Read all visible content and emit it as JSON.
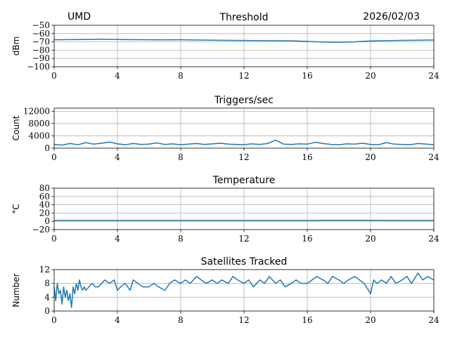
{
  "header": {
    "site": "UMD",
    "date": "2026/02/03"
  },
  "series_color": "#1f77b4",
  "chart_data": [
    {
      "type": "line",
      "title": "Threshold",
      "ylabel": "dBm",
      "xlabel": "",
      "xlim": [
        0,
        24
      ],
      "ylim": [
        -100,
        -50
      ],
      "x_ticks": [
        "0",
        "4",
        "8",
        "12",
        "16",
        "20",
        "24"
      ],
      "y_ticks": [
        "−50",
        "−60",
        "−70",
        "−80",
        "−90",
        "−100"
      ],
      "grid": true,
      "x": [
        0,
        1,
        2,
        3,
        4,
        5,
        6,
        7,
        8,
        9,
        10,
        11,
        12,
        13,
        14,
        15,
        16,
        17,
        18,
        19,
        20,
        21,
        22,
        23,
        24
      ],
      "values": [
        -67.5,
        -67.3,
        -67.2,
        -67.0,
        -67.2,
        -67.4,
        -67.5,
        -67.6,
        -67.5,
        -67.8,
        -68.0,
        -68.2,
        -68.3,
        -68.5,
        -68.6,
        -68.8,
        -69.5,
        -70.2,
        -70.5,
        -70.0,
        -69.0,
        -68.5,
        -68.2,
        -68.0,
        -67.8
      ]
    },
    {
      "type": "line",
      "title": "Triggers/sec",
      "ylabel": "Count",
      "xlabel": "",
      "xlim": [
        0,
        24
      ],
      "ylim": [
        0,
        13000
      ],
      "x_ticks": [
        "0",
        "4",
        "8",
        "12",
        "16",
        "20",
        "24"
      ],
      "y_ticks": [
        "0",
        "4000",
        "8000",
        "12000"
      ],
      "grid": true,
      "x": [
        0,
        0.5,
        1,
        1.5,
        2,
        2.5,
        3,
        3.5,
        4,
        4.5,
        5,
        5.5,
        6,
        6.5,
        7,
        7.5,
        8,
        8.5,
        9,
        9.5,
        10,
        10.5,
        11,
        11.5,
        12,
        12.5,
        13,
        13.5,
        14,
        14.5,
        15,
        15.5,
        16,
        16.5,
        17,
        17.5,
        18,
        18.5,
        19,
        19.5,
        20,
        20.5,
        21,
        21.5,
        22,
        22.5,
        23,
        23.5,
        24
      ],
      "values": [
        1200,
        1000,
        1500,
        1100,
        1800,
        1300,
        1600,
        2000,
        1400,
        1100,
        1500,
        1200,
        1300,
        1700,
        1200,
        1400,
        1100,
        1300,
        1500,
        1200,
        1400,
        1600,
        1300,
        1200,
        1100,
        1400,
        1200,
        1500,
        2600,
        1300,
        1200,
        1400,
        1300,
        1900,
        1500,
        1200,
        1100,
        1400,
        1300,
        1600,
        1200,
        1100,
        1800,
        1300,
        1200,
        1100,
        1500,
        1300,
        1100
      ]
    },
    {
      "type": "line",
      "title": "Temperature",
      "ylabel": "°C",
      "xlabel": "",
      "xlim": [
        0,
        24
      ],
      "ylim": [
        -20,
        80
      ],
      "x_ticks": [
        "0",
        "4",
        "8",
        "12",
        "16",
        "20",
        "24"
      ],
      "y_ticks": [
        "80",
        "60",
        "40",
        "20",
        "0",
        "−20"
      ],
      "grid": true,
      "x": [
        0,
        4,
        8,
        12,
        16,
        17,
        18,
        20,
        22,
        24
      ],
      "values": [
        2,
        2,
        2,
        2,
        2,
        2.5,
        2.5,
        2.5,
        2,
        2
      ]
    },
    {
      "type": "line",
      "title": "Satellites Tracked",
      "ylabel": "Number",
      "xlabel": "",
      "xlim": [
        0,
        24
      ],
      "ylim": [
        0,
        12
      ],
      "x_ticks": [
        "0",
        "4",
        "8",
        "12",
        "16",
        "20",
        "24"
      ],
      "y_ticks": [
        "0",
        "4",
        "8",
        "12"
      ],
      "grid": true,
      "x": [
        0,
        0.1,
        0.2,
        0.3,
        0.4,
        0.5,
        0.6,
        0.7,
        0.8,
        0.9,
        1.0,
        1.1,
        1.2,
        1.3,
        1.4,
        1.5,
        1.6,
        1.7,
        1.8,
        1.9,
        2.0,
        2.2,
        2.4,
        2.6,
        2.8,
        3.0,
        3.2,
        3.5,
        3.8,
        4.0,
        4.2,
        4.5,
        4.8,
        5.0,
        5.3,
        5.6,
        6.0,
        6.3,
        6.6,
        7.0,
        7.3,
        7.6,
        8.0,
        8.3,
        8.6,
        9.0,
        9.3,
        9.6,
        10.0,
        10.3,
        10.6,
        11.0,
        11.3,
        11.6,
        12.0,
        12.3,
        12.6,
        13.0,
        13.3,
        13.6,
        14.0,
        14.3,
        14.6,
        15.0,
        15.3,
        15.6,
        16.0,
        16.3,
        16.6,
        17.0,
        17.3,
        17.6,
        18.0,
        18.3,
        18.6,
        19.0,
        19.3,
        19.6,
        20.0,
        20.2,
        20.4,
        20.7,
        21.0,
        21.3,
        21.6,
        22.0,
        22.3,
        22.6,
        23.0,
        23.3,
        23.6,
        24.0
      ],
      "values": [
        7,
        3,
        8,
        5,
        6,
        2,
        7,
        4,
        6,
        3,
        5,
        1,
        7,
        5,
        8,
        6,
        9,
        7,
        6,
        7,
        6,
        7,
        8,
        7,
        7,
        8,
        9,
        8,
        9,
        6,
        7,
        8,
        6,
        9,
        8,
        7,
        7,
        8,
        7,
        6,
        8,
        9,
        8,
        9,
        8,
        10,
        9,
        8,
        9,
        8,
        9,
        8,
        10,
        9,
        8,
        9,
        7,
        9,
        8,
        10,
        8,
        9,
        7,
        8,
        9,
        8,
        8,
        9,
        10,
        9,
        8,
        10,
        9,
        8,
        9,
        10,
        9,
        8,
        5,
        9,
        8,
        9,
        8,
        10,
        8,
        9,
        10,
        8,
        11,
        9,
        10,
        9
      ]
    }
  ]
}
